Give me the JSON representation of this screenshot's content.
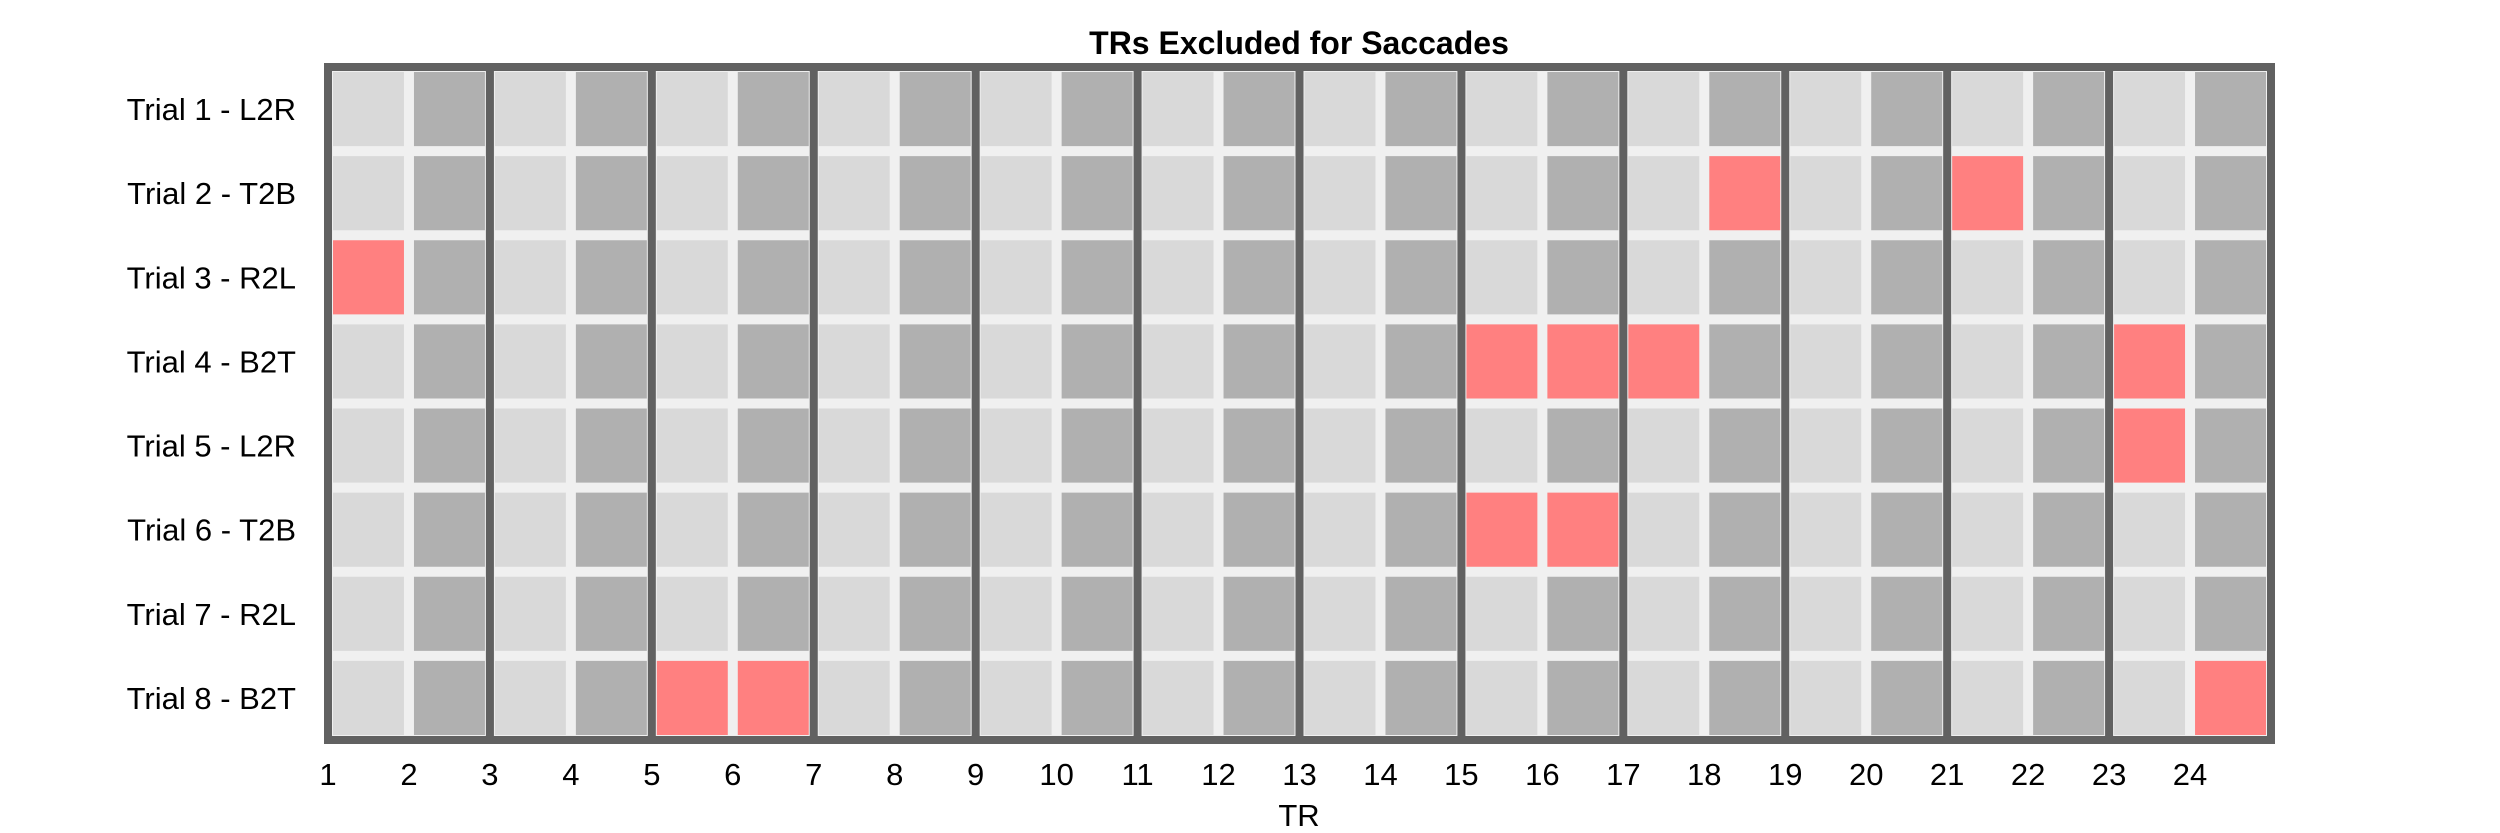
{
  "chart_data": {
    "type": "heatmap",
    "title": "TRs Excluded for Saccades",
    "xlabel": "TR",
    "ylabel": "",
    "rows": [
      "Trial 1 - L2R",
      "Trial 2 - T2B",
      "Trial 3 - R2L",
      "Trial 4 - B2T",
      "Trial 5 - L2R",
      "Trial 6 - T2B",
      "Trial 7 - R2L",
      "Trial 8 - B2T"
    ],
    "x_ticks": [
      1,
      2,
      3,
      4,
      5,
      6,
      7,
      8,
      9,
      10,
      11,
      12,
      13,
      14,
      15,
      16,
      17,
      18,
      19,
      20,
      21,
      22,
      23,
      24
    ],
    "n_columns": 24,
    "excluded": [
      {
        "trial": "Trial 2 - T2B",
        "tr": [
          18,
          21
        ]
      },
      {
        "trial": "Trial 3 - R2L",
        "tr": [
          1
        ]
      },
      {
        "trial": "Trial 4 - B2T",
        "tr": [
          15,
          16,
          17,
          23
        ]
      },
      {
        "trial": "Trial 5 - L2R",
        "tr": [
          23
        ]
      },
      {
        "trial": "Trial 6 - T2B",
        "tr": [
          15,
          16
        ]
      },
      {
        "trial": "Trial 8 - B2T",
        "tr": [
          5,
          6,
          24
        ]
      }
    ],
    "colors": {
      "included_light": "#d9d9d9",
      "included_dark": "#b0b0b0",
      "excluded": "#ff8080",
      "grid": "#f0f0f0",
      "group_border": "#616161"
    }
  }
}
